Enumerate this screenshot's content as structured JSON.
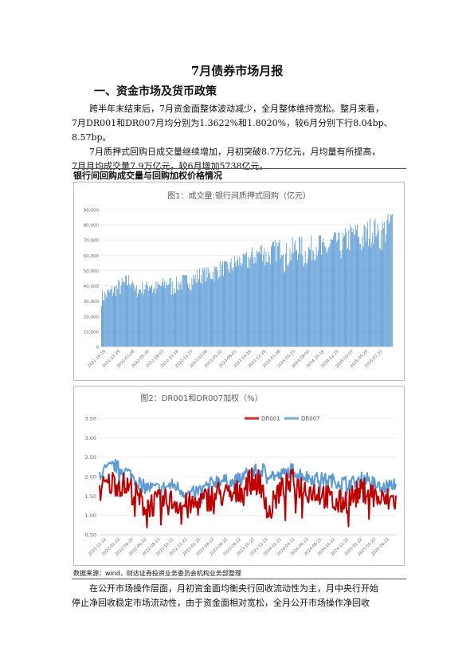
{
  "doc": {
    "title": "7月债券市场月报",
    "section1": "一、资金市场及货币政策",
    "para1_line1": "跨半年末结束后，7月资金面整体波动减少，全月整体维持宽松。整月来看，",
    "para1_line2": "7月DR001和DR007月均分别为1.3622%和1.8020%，较6月分别下行8.04bp、",
    "para1_line3": "8.57bp。",
    "para2_line1": "7月质押式回购日成交量继续增加，月初突破8.7万亿元，月均量有所提高，",
    "para2_line2": "7月月均成交量7.9万亿元，较6月增加5738亿元。",
    "chart_caption": "银行间回购成交量与回购加权价格情况",
    "source": "数据来源：wind，财达证券投资业务委员会机构业务部整理",
    "para3_line1": "在公开市场操作层面，月初资金面均衡央行回收流动性为主，月中央行开始",
    "para3_line2": "停止净回收稳定市场流动性，由于资金面相对宽松，全月公开市场操作净回收"
  },
  "chart_data": [
    {
      "type": "bar",
      "title": "图1：成交量:银行间质押式回购（亿元）",
      "ylim": [
        0,
        90000
      ],
      "yticks": [
        "0",
        "10,000",
        "20,000",
        "30,000",
        "40,000",
        "50,000",
        "60,000",
        "70,000",
        "80,000",
        "90,000"
      ],
      "xticks": [
        "2021-10-19",
        "2021-12-29",
        "2022-03-08",
        "2022-05-20",
        "2022-08-03",
        "2022-10-18",
        "2022-12-27",
        "2023-03-08",
        "2023-05-22",
        "2023-08-01",
        "2023-10-16",
        "2023-12-28",
        "2024-03-08",
        "2024-05-23",
        "2024-08-02",
        "2024-10-16",
        "2024-12-25",
        "2025-03-07",
        "2025-05-20",
        "2025-07-31"
      ],
      "color": "#5b9bd5",
      "segments": [
        {
          "n": 18,
          "lo": 28000,
          "hi": 40000
        },
        {
          "n": 20,
          "lo": 33000,
          "hi": 47000
        },
        {
          "n": 22,
          "lo": 32000,
          "hi": 43000
        },
        {
          "n": 22,
          "lo": 33000,
          "hi": 45000
        },
        {
          "n": 22,
          "lo": 34000,
          "hi": 47000
        },
        {
          "n": 22,
          "lo": 38000,
          "hi": 52000
        },
        {
          "n": 22,
          "lo": 42000,
          "hi": 56000
        },
        {
          "n": 22,
          "lo": 46000,
          "hi": 61000
        },
        {
          "n": 22,
          "lo": 50000,
          "hi": 67000
        },
        {
          "n": 22,
          "lo": 52000,
          "hi": 70000
        },
        {
          "n": 22,
          "lo": 50000,
          "hi": 72000
        },
        {
          "n": 22,
          "lo": 52000,
          "hi": 73000
        },
        {
          "n": 22,
          "lo": 54000,
          "hi": 75000
        },
        {
          "n": 22,
          "lo": 58000,
          "hi": 80000
        },
        {
          "n": 22,
          "lo": 60000,
          "hi": 84000
        },
        {
          "n": 18,
          "lo": 62000,
          "hi": 87000
        }
      ]
    },
    {
      "type": "line",
      "title": "图2：DR001和DR007加权（%）",
      "ylim": [
        0.5,
        3.5
      ],
      "yticks": [
        "0.50",
        "1.00",
        "1.50",
        "2.00",
        "2.50",
        "3.00",
        "3.50"
      ],
      "xticks": [
        "2021-12-22",
        "2022-02-22",
        "2022-04-22",
        "2022-06-22",
        "2022-08-22",
        "2022-10-22",
        "2022-12-22",
        "2023-02-22",
        "2023-04-22",
        "2023-06-22",
        "2023-08-22",
        "2023-10-22",
        "2023-12-22",
        "2024-02-22",
        "2024-04-22",
        "2024-06-22",
        "2024-08-22",
        "2024-10-22",
        "2024-12-22",
        "2025-02-22",
        "2025-04-22",
        "2025-06-22"
      ],
      "legend": "top",
      "series": [
        {
          "name": "DR001",
          "color": "#c00000",
          "anchors": [
            [
              0,
              1.7
            ],
            [
              0.05,
              1.9
            ],
            [
              0.1,
              1.75
            ],
            [
              0.15,
              1.3
            ],
            [
              0.2,
              1.35
            ],
            [
              0.25,
              1.4
            ],
            [
              0.3,
              1.25
            ],
            [
              0.35,
              1.4
            ],
            [
              0.4,
              1.6
            ],
            [
              0.45,
              1.5
            ],
            [
              0.5,
              1.9
            ],
            [
              0.55,
              1.9
            ],
            [
              0.57,
              1.0
            ],
            [
              0.6,
              1.6
            ],
            [
              0.65,
              1.9
            ],
            [
              0.7,
              1.7
            ],
            [
              0.75,
              1.6
            ],
            [
              0.8,
              1.3
            ],
            [
              0.85,
              1.5
            ],
            [
              0.9,
              1.7
            ],
            [
              0.95,
              1.4
            ],
            [
              1.0,
              1.45
            ]
          ],
          "noise": 0.35
        },
        {
          "name": "DR007",
          "color": "#5b9bd5",
          "anchors": [
            [
              0,
              2.1
            ],
            [
              0.05,
              2.3
            ],
            [
              0.1,
              2.1
            ],
            [
              0.15,
              1.75
            ],
            [
              0.2,
              1.7
            ],
            [
              0.25,
              1.8
            ],
            [
              0.3,
              1.55
            ],
            [
              0.35,
              1.7
            ],
            [
              0.4,
              1.95
            ],
            [
              0.45,
              1.85
            ],
            [
              0.5,
              2.1
            ],
            [
              0.55,
              2.2
            ],
            [
              0.6,
              2.0
            ],
            [
              0.65,
              2.2
            ],
            [
              0.7,
              2.0
            ],
            [
              0.75,
              1.95
            ],
            [
              0.8,
              1.9
            ],
            [
              0.85,
              1.85
            ],
            [
              0.9,
              2.0
            ],
            [
              0.95,
              1.7
            ],
            [
              1.0,
              1.85
            ]
          ],
          "noise": 0.18
        }
      ]
    }
  ]
}
